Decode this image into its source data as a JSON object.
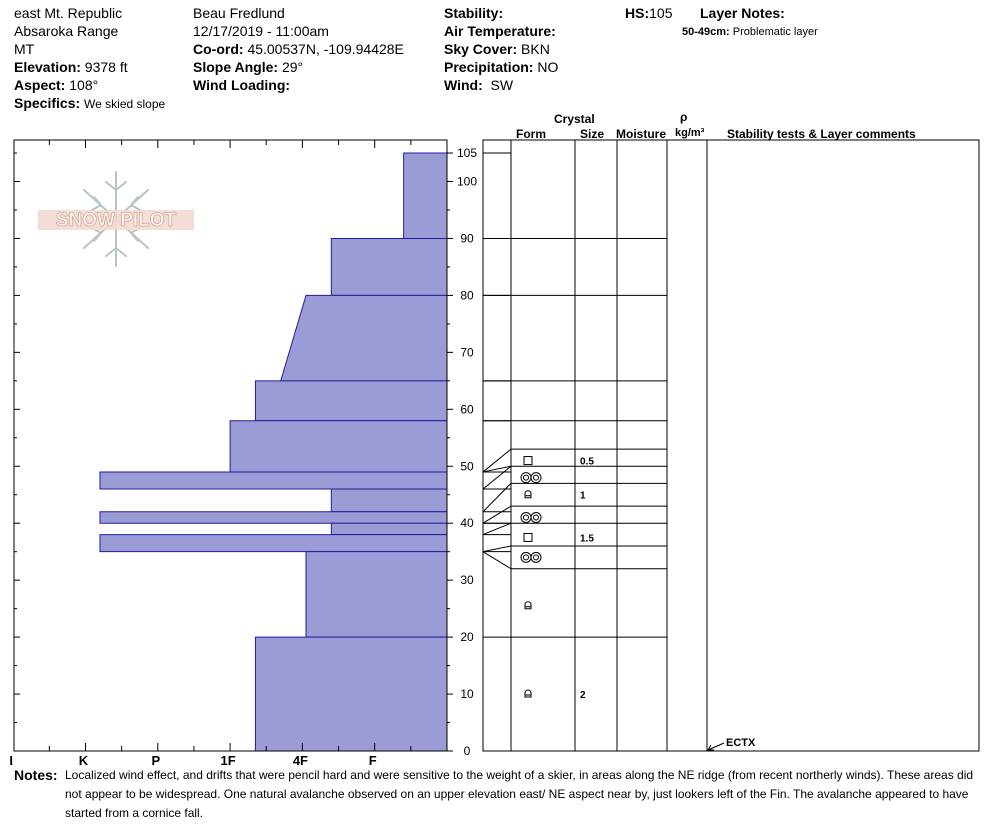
{
  "header": {
    "location": "east Mt. Republic",
    "range": "Absaroka Range",
    "state": "MT",
    "elevation_label": "Elevation:",
    "elevation": "9378 ft",
    "aspect_label": "Aspect:",
    "aspect": "108°",
    "specifics_label": "Specifics:",
    "specifics": "We skied slope",
    "observer": "Beau  Fredlund",
    "datetime": "12/17/2019 - 11:00am",
    "coord_label": "Co-ord:",
    "coord": "45.00537N, -109.94428E",
    "slope_label": "Slope Angle:",
    "slope": "29°",
    "wind_loading_label": "Wind Loading:",
    "wind_loading": "",
    "stability_label": "Stability:",
    "stability": "",
    "air_temp_label": "Air Temperature:",
    "air_temp": "",
    "sky_label": "Sky Cover:",
    "sky": "BKN",
    "precip_label": "Precipitation:",
    "precip": "NO",
    "wind_label": "Wind:",
    "wind": "SW",
    "hs_label": "HS:",
    "hs": "105",
    "layer_notes_label": "Layer Notes:",
    "layer_notes": [
      {
        "range": "50-49cm:",
        "text": "Problematic layer"
      }
    ]
  },
  "logo": {
    "text": "SNOW PILOT"
  },
  "columns": {
    "crystal": "Crystal",
    "form": "Form",
    "size": "Size",
    "moisture": "Moisture",
    "rho": "ρ",
    "density_unit": "kg/m³",
    "stability": "Stability tests & Layer comments"
  },
  "chart_data": {
    "type": "snow-profile",
    "hardness_axis": [
      "I",
      "K",
      "P",
      "1F",
      "4F",
      "F"
    ],
    "height_ticks": [
      0,
      10,
      20,
      30,
      40,
      50,
      60,
      70,
      80,
      90,
      100,
      105
    ],
    "height_range": [
      0,
      105
    ],
    "hardness_layers": [
      {
        "bottom": 90,
        "top": 105,
        "hardness": 0.6,
        "hardness_top": 0.6
      },
      {
        "bottom": 80,
        "top": 90,
        "hardness": 1.6,
        "hardness_top": 1.6
      },
      {
        "bottom": 65,
        "top": 80,
        "hardness": 2.3,
        "hardness_top": 1.95
      },
      {
        "bottom": 58,
        "top": 65,
        "hardness": 2.65,
        "hardness_top": 2.65
      },
      {
        "bottom": 49,
        "top": 58,
        "hardness": 3.0,
        "hardness_top": 3.0
      },
      {
        "bottom": 46,
        "top": 49,
        "hardness": 4.8,
        "hardness_top": 4.8
      },
      {
        "bottom": 42,
        "top": 46,
        "hardness": 1.6,
        "hardness_top": 1.6
      },
      {
        "bottom": 40,
        "top": 42,
        "hardness": 4.8,
        "hardness_top": 4.8
      },
      {
        "bottom": 38,
        "top": 40,
        "hardness": 1.6,
        "hardness_top": 1.6
      },
      {
        "bottom": 35,
        "top": 38,
        "hardness": 4.8,
        "hardness_top": 4.8
      },
      {
        "bottom": 20,
        "top": 35,
        "hardness": 1.95,
        "hardness_top": 1.95
      },
      {
        "bottom": 0,
        "top": 20,
        "hardness": 2.65,
        "hardness_top": 2.65
      }
    ],
    "layer_boundaries": [
      105,
      90,
      80,
      65,
      58,
      49,
      46,
      42,
      40,
      38,
      35,
      20,
      0
    ],
    "grain_rows": [
      {
        "top": 90,
        "bottom": 105,
        "y": 105
      },
      {
        "top": 80,
        "bottom": 90,
        "y": 90
      },
      {
        "top": 65,
        "bottom": 80,
        "y": 80
      },
      {
        "top": 58,
        "bottom": 65,
        "y": 65
      },
      {
        "top": 53,
        "bottom": 58,
        "y": 58
      },
      {
        "top": 50,
        "bottom": 53,
        "y": 51,
        "form": "square",
        "size": "0.5"
      },
      {
        "top": 47,
        "bottom": 50,
        "y": 48,
        "form": "cup",
        "size": ""
      },
      {
        "top": 43,
        "bottom": 47,
        "y": 45,
        "form": "round",
        "size": "1"
      },
      {
        "top": 40,
        "bottom": 43,
        "y": 41,
        "form": "cup",
        "size": ""
      },
      {
        "top": 36,
        "bottom": 40,
        "y": 37.5,
        "form": "square",
        "size": "1.5"
      },
      {
        "top": 32,
        "bottom": 36,
        "y": 34,
        "form": "cup",
        "size": ""
      },
      {
        "top": 20,
        "bottom": 32,
        "y": 25.5,
        "form": "round",
        "size": ""
      },
      {
        "top": 0,
        "bottom": 20,
        "y": 10,
        "form": "round",
        "size": "2"
      }
    ],
    "stability_tests": [
      {
        "height": 0,
        "label": "ECTX"
      }
    ]
  },
  "notes": {
    "label": "Notes:",
    "text": "Localized wind effect, and drifts that were pencil hard and were sensitive to the weight of a skier, in areas along the NE ridge (from recent northerly winds).  These areas did not appear to be widespread.  One natural avalanche observed on an upper elevation east/ NE aspect near by, just lookers left of the Fin.  The avalanche appeared to have started from a cornice fall."
  }
}
